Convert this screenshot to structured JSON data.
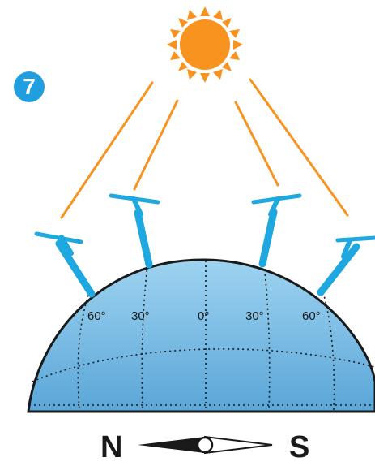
{
  "figure": {
    "badge_number": "7",
    "latitude_labels": [
      "60°",
      "30°",
      "0°",
      "30°",
      "60°"
    ],
    "compass": {
      "left": "N",
      "right": "S"
    },
    "sun_icon": "sun-icon",
    "sundial_icon": "sundial-icon"
  },
  "colors": {
    "sun_fill": "#f7931e",
    "ray": "#f7931e",
    "sundial": "#1fa8e0",
    "globe_top": "#9ed3f0",
    "globe_bottom": "#5aa6d8",
    "badge": "#1f9fe0",
    "outline": "#1a1a1a"
  }
}
